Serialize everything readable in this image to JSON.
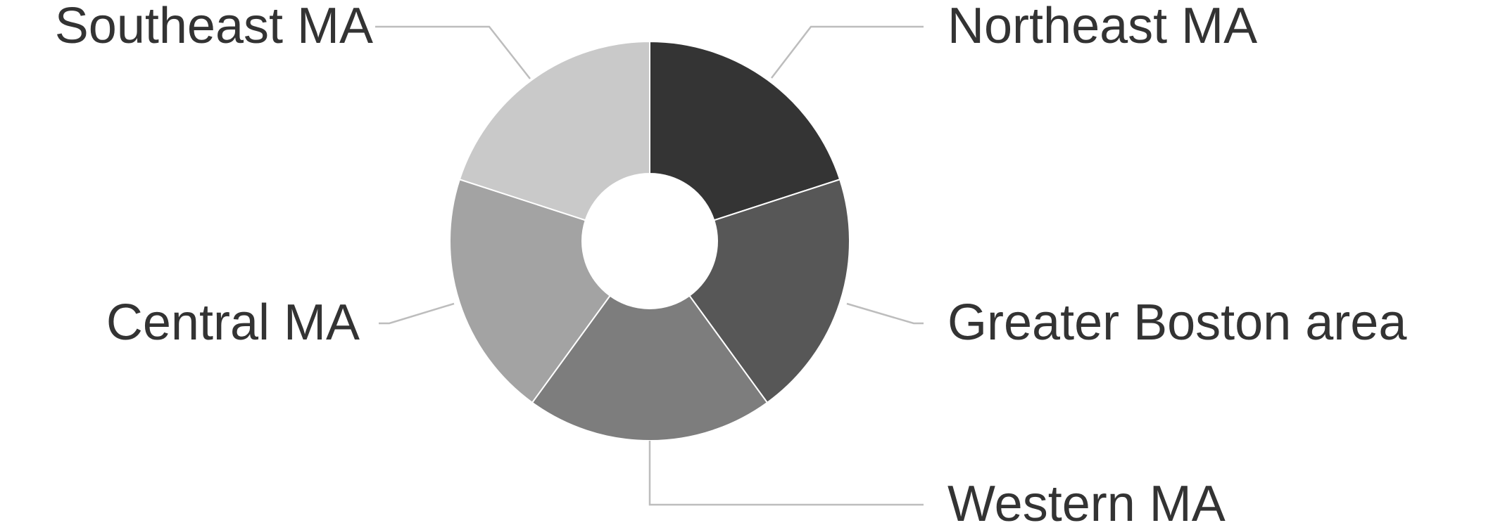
{
  "chart_data": {
    "type": "pie",
    "donut": true,
    "title": "",
    "legend": "none",
    "slices": [
      {
        "label": "Northeast MA",
        "value": 20,
        "color": "#343434"
      },
      {
        "label": "Greater Boston area",
        "value": 20,
        "color": "#575757"
      },
      {
        "label": "Western MA",
        "value": 20,
        "color": "#7d7d7d"
      },
      {
        "label": "Central MA",
        "value": 20,
        "color": "#a3a3a3"
      },
      {
        "label": "Southeast MA",
        "value": 20,
        "color": "#c9c9c9"
      }
    ]
  }
}
